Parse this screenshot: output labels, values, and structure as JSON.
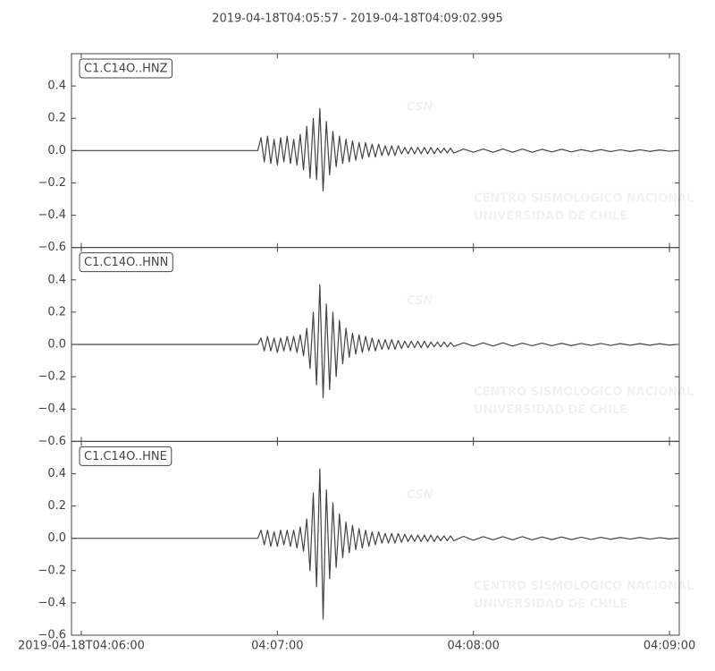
{
  "chart_data": {
    "type": "line",
    "title": "2019-04-18T04:05:57  -  2019-04-18T04:09:02.995",
    "watermark": [
      "CSN",
      "CENTRO SISMOLOGICO NACIONAL",
      "UNIVERSIDAD DE CHILE"
    ],
    "xlim": [
      "2019-04-18T04:05:57",
      "2019-04-18T04:09:02.995"
    ],
    "xticks": [
      "2019-04-18T04:06:00",
      {
        "value": "2019-04-18T04:07:00",
        "label": "04:07:00"
      },
      {
        "value": "2019-04-18T04:08:00",
        "label": "04:08:00"
      },
      {
        "value": "2019-04-18T04:09:00",
        "label": "04:09:00"
      }
    ],
    "ylim": [
      -0.6,
      0.6
    ],
    "yticks": [
      {
        "value": -0.6,
        "label": "−0.6"
      },
      {
        "value": -0.4,
        "label": "−0.4"
      },
      {
        "value": -0.2,
        "label": "−0.2"
      },
      {
        "value": 0,
        "label": "0.0"
      },
      0.2,
      0.4
    ],
    "x": [
      "2019-04-18T04:05:57",
      "2019-04-18T04:06:54",
      "2019-04-18T04:06:55",
      "2019-04-18T04:06:56",
      "2019-04-18T04:06:57",
      "2019-04-18T04:06:58",
      "2019-04-18T04:06:59",
      "2019-04-18T04:07:00",
      "2019-04-18T04:07:01",
      "2019-04-18T04:07:02",
      "2019-04-18T04:07:03",
      "2019-04-18T04:07:04",
      "2019-04-18T04:07:05",
      "2019-04-18T04:07:06",
      "2019-04-18T04:07:07",
      "2019-04-18T04:07:08",
      "2019-04-18T04:07:09",
      "2019-04-18T04:07:10",
      "2019-04-18T04:07:11",
      "2019-04-18T04:07:12",
      "2019-04-18T04:07:13",
      "2019-04-18T04:07:14",
      "2019-04-18T04:07:15",
      "2019-04-18T04:07:16",
      "2019-04-18T04:07:17",
      "2019-04-18T04:07:18",
      "2019-04-18T04:07:19",
      "2019-04-18T04:07:20",
      "2019-04-18T04:07:21",
      "2019-04-18T04:07:22",
      "2019-04-18T04:07:23",
      "2019-04-18T04:07:24",
      "2019-04-18T04:07:25",
      "2019-04-18T04:07:26",
      "2019-04-18T04:07:27",
      "2019-04-18T04:07:28",
      "2019-04-18T04:07:29",
      "2019-04-18T04:07:30",
      "2019-04-18T04:07:31",
      "2019-04-18T04:07:32",
      "2019-04-18T04:07:33",
      "2019-04-18T04:07:34",
      "2019-04-18T04:07:35",
      "2019-04-18T04:07:36",
      "2019-04-18T04:07:37",
      "2019-04-18T04:07:38",
      "2019-04-18T04:07:39",
      "2019-04-18T04:07:40",
      "2019-04-18T04:07:41",
      "2019-04-18T04:07:42",
      "2019-04-18T04:07:43",
      "2019-04-18T04:07:44",
      "2019-04-18T04:07:45",
      "2019-04-18T04:07:46",
      "2019-04-18T04:07:47",
      "2019-04-18T04:07:48",
      "2019-04-18T04:07:49",
      "2019-04-18T04:07:50",
      "2019-04-18T04:07:51",
      "2019-04-18T04:07:52",
      "2019-04-18T04:07:53",
      "2019-04-18T04:07:54",
      "2019-04-18T04:07:57",
      "2019-04-18T04:08:00",
      "2019-04-18T04:08:03",
      "2019-04-18T04:08:06",
      "2019-04-18T04:08:09",
      "2019-04-18T04:08:12",
      "2019-04-18T04:08:15",
      "2019-04-18T04:08:18",
      "2019-04-18T04:08:21",
      "2019-04-18T04:08:24",
      "2019-04-18T04:08:27",
      "2019-04-18T04:08:30",
      "2019-04-18T04:08:33",
      "2019-04-18T04:08:36",
      "2019-04-18T04:08:39",
      "2019-04-18T04:08:42",
      "2019-04-18T04:08:45",
      "2019-04-18T04:08:48",
      "2019-04-18T04:08:51",
      "2019-04-18T04:08:54",
      "2019-04-18T04:08:57",
      "2019-04-18T04:09:00",
      "2019-04-18T04:09:02"
    ],
    "series": [
      {
        "name": "C1.C14O..HNZ",
        "color": "#444444",
        "values": [
          0,
          0,
          0.08,
          -0.07,
          0.09,
          -0.08,
          0.07,
          -0.09,
          0.08,
          -0.07,
          0.09,
          -0.08,
          0.07,
          -0.09,
          0.1,
          -0.12,
          0.15,
          -0.17,
          0.2,
          -0.18,
          0.26,
          -0.25,
          0.18,
          -0.15,
          0.12,
          -0.1,
          0.09,
          -0.08,
          0.07,
          -0.07,
          0.06,
          -0.06,
          0.05,
          -0.05,
          0.05,
          -0.04,
          0.04,
          -0.04,
          0.04,
          -0.03,
          0.03,
          -0.03,
          0.03,
          -0.03,
          0.03,
          -0.02,
          0.02,
          -0.02,
          0.02,
          -0.02,
          0.02,
          -0.02,
          0.02,
          -0.02,
          0.02,
          -0.02,
          0.015,
          -0.015,
          0.015,
          -0.015,
          0.015,
          -0.015,
          0.01,
          -0.01,
          0.01,
          -0.01,
          0.01,
          -0.01,
          0.01,
          -0.01,
          0.008,
          -0.008,
          0.008,
          -0.008,
          0.006,
          -0.006,
          0.006,
          -0.006,
          0.005,
          -0.005,
          0.005,
          -0.005,
          0.004,
          -0.004,
          0
        ]
      },
      {
        "name": "C1.C14O..HNN",
        "color": "#444444",
        "values": [
          0,
          0,
          0.04,
          -0.04,
          0.05,
          -0.04,
          0.04,
          -0.05,
          0.04,
          -0.04,
          0.05,
          -0.04,
          0.05,
          -0.05,
          0.06,
          -0.07,
          0.1,
          -0.15,
          0.2,
          -0.25,
          0.37,
          -0.33,
          0.25,
          -0.28,
          0.2,
          -0.2,
          0.15,
          -0.12,
          0.1,
          -0.08,
          0.07,
          -0.06,
          0.06,
          -0.05,
          0.05,
          -0.04,
          0.04,
          -0.04,
          0.03,
          -0.03,
          0.03,
          -0.03,
          0.03,
          -0.03,
          0.025,
          -0.025,
          0.02,
          -0.02,
          0.02,
          -0.02,
          0.02,
          -0.02,
          0.02,
          -0.02,
          0.015,
          -0.015,
          0.015,
          -0.015,
          0.015,
          -0.015,
          0.012,
          -0.012,
          0.01,
          -0.01,
          0.01,
          -0.01,
          0.01,
          -0.01,
          0.008,
          -0.008,
          0.008,
          -0.008,
          0.007,
          -0.007,
          0.006,
          -0.006,
          0.006,
          -0.006,
          0.005,
          -0.005,
          0.005,
          -0.005,
          0.004,
          -0.004,
          0
        ]
      },
      {
        "name": "C1.C14O..HNE",
        "color": "#444444",
        "values": [
          0,
          0,
          0.05,
          -0.04,
          0.05,
          -0.05,
          0.04,
          -0.05,
          0.05,
          -0.04,
          0.05,
          -0.05,
          0.05,
          -0.06,
          0.07,
          -0.08,
          0.12,
          -0.2,
          0.28,
          -0.3,
          0.43,
          -0.5,
          0.3,
          -0.25,
          0.22,
          -0.18,
          0.15,
          -0.12,
          0.1,
          -0.09,
          0.08,
          -0.07,
          0.06,
          -0.06,
          0.05,
          -0.05,
          0.04,
          -0.04,
          0.04,
          -0.03,
          0.03,
          -0.03,
          0.03,
          -0.03,
          0.03,
          -0.025,
          0.025,
          -0.02,
          0.02,
          -0.02,
          0.02,
          -0.02,
          0.02,
          -0.02,
          0.02,
          -0.02,
          0.015,
          -0.015,
          0.015,
          -0.015,
          0.015,
          -0.015,
          0.012,
          -0.012,
          0.01,
          -0.01,
          0.01,
          -0.01,
          0.01,
          -0.01,
          0.008,
          -0.008,
          0.008,
          -0.008,
          0.007,
          -0.007,
          0.006,
          -0.006,
          0.005,
          -0.005,
          0.005,
          -0.005,
          0.004,
          -0.004,
          0
        ]
      }
    ]
  }
}
